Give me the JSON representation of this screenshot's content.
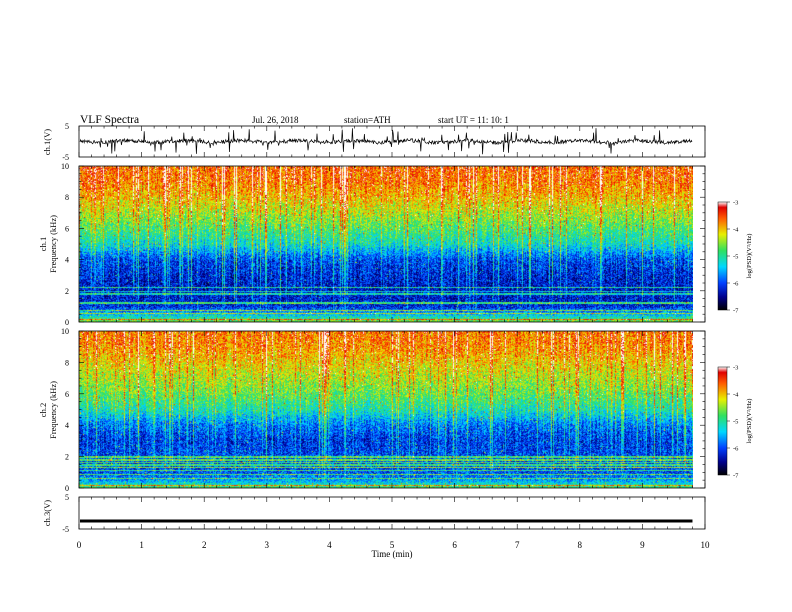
{
  "header": {
    "title": "VLF  Spectra",
    "date": "Jul.  26, 2018",
    "station": "station=ATH",
    "start": "start  UT  =   11: 10: 1"
  },
  "chart_data": [
    {
      "id": "ch1_voltage",
      "type": "line",
      "ylabel": "ch.1(V)",
      "ylim": [
        -5,
        5
      ],
      "yticks": [
        "5",
        "-5"
      ],
      "xlim": [
        0,
        10
      ],
      "series": [
        {
          "mean": 0,
          "trace_color": "#000000"
        }
      ]
    },
    {
      "id": "ch1_spectrogram",
      "type": "heatmap",
      "ylabel": "ch.1\nFrequency  (kHz)",
      "ylim": [
        0,
        10
      ],
      "yticks": [
        "0",
        "2",
        "4",
        "6",
        "8",
        "10"
      ],
      "xlim": [
        0,
        9.8
      ],
      "colorbar": {
        "label": "log(PSD)(V²/Hz)",
        "range": [
          -7,
          -3
        ],
        "ticks": [
          "-3",
          "-4",
          "-5",
          "-6",
          "-7"
        ]
      },
      "psd_profile": [
        {
          "f": 0.0,
          "v": -4.6
        },
        {
          "f": 0.5,
          "v": -5.6
        },
        {
          "f": 1.0,
          "v": -6.2
        },
        {
          "f": 2.0,
          "v": -6.3
        },
        {
          "f": 3.0,
          "v": -6.2
        },
        {
          "f": 4.0,
          "v": -6.0
        },
        {
          "f": 5.0,
          "v": -5.2
        },
        {
          "f": 6.0,
          "v": -4.8
        },
        {
          "f": 7.0,
          "v": -4.4
        },
        {
          "f": 8.0,
          "v": -4.0
        },
        {
          "f": 9.0,
          "v": -3.7
        },
        {
          "f": 10.0,
          "v": -3.6
        }
      ]
    },
    {
      "id": "ch2_spectrogram",
      "type": "heatmap",
      "ylabel": "ch.2\nFrequency  (kHz)",
      "ylim": [
        0,
        10
      ],
      "yticks": [
        "0",
        "2",
        "4",
        "6",
        "8",
        "10"
      ],
      "xlim": [
        0,
        9.8
      ],
      "colorbar": {
        "label": "log(PSD)(V²/Hz)",
        "range": [
          -7,
          -3
        ],
        "ticks": [
          "-3",
          "-4",
          "-5",
          "-6",
          "-7"
        ]
      },
      "psd_profile": [
        {
          "f": 0.0,
          "v": -4.8
        },
        {
          "f": 0.5,
          "v": -5.7
        },
        {
          "f": 1.0,
          "v": -6.0
        },
        {
          "f": 2.0,
          "v": -6.0
        },
        {
          "f": 3.0,
          "v": -6.1
        },
        {
          "f": 4.0,
          "v": -5.8
        },
        {
          "f": 5.0,
          "v": -5.1
        },
        {
          "f": 6.0,
          "v": -4.7
        },
        {
          "f": 7.0,
          "v": -4.4
        },
        {
          "f": 8.0,
          "v": -4.1
        },
        {
          "f": 9.0,
          "v": -3.8
        },
        {
          "f": 10.0,
          "v": -3.7
        }
      ]
    },
    {
      "id": "ch3_voltage",
      "type": "line",
      "ylabel": "ch.3(V)",
      "ylim": [
        -5,
        5
      ],
      "yticks": [
        "5",
        "-5"
      ],
      "xlim": [
        0,
        10
      ],
      "series": [
        {
          "mean": -2.5,
          "trace_color": "#000000"
        }
      ]
    }
  ],
  "xaxis": {
    "label": "Time  (min)",
    "ticks": [
      "0",
      "1",
      "2",
      "3",
      "4",
      "5",
      "6",
      "7",
      "8",
      "9",
      "10"
    ],
    "range": [
      0,
      10
    ]
  }
}
